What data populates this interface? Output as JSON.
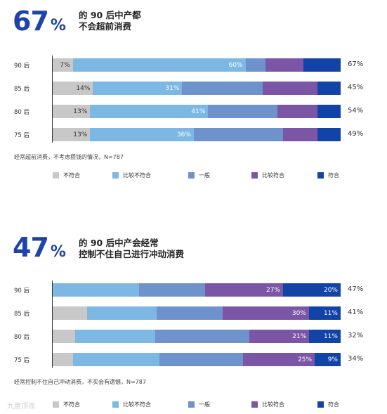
{
  "colors": [
    "#c8c8c8",
    "#7cb8e3",
    "#6e92cc",
    "#7b56a6",
    "#1244a8"
  ],
  "legend": [
    "不符合",
    "比较不符合",
    "一般",
    "比较符合",
    "符合"
  ],
  "watermark": "九度顶视",
  "chart_data": [
    {
      "type": "stacked-bar",
      "big_value": "67",
      "big_unit": "%",
      "title_line1": "的 90 后中产都",
      "title_line2": "不会超前消费",
      "note": "经常超前消费，不考虑攒钱的情况，N=787",
      "categories": [
        "90 后",
        "85 后",
        "80 后",
        "75 后"
      ],
      "rows": [
        {
          "category": "90 后",
          "values": [
            7,
            60,
            7,
            13,
            13
          ],
          "labels": [
            "7%",
            "60%",
            "",
            "",
            ""
          ],
          "total": "67%"
        },
        {
          "category": "85 后",
          "values": [
            14,
            31,
            28,
            19,
            8
          ],
          "labels": [
            "14%",
            "31%",
            "",
            "",
            ""
          ],
          "total": "45%"
        },
        {
          "category": "80 后",
          "values": [
            13,
            41,
            24,
            14,
            8
          ],
          "labels": [
            "13%",
            "41%",
            "",
            "",
            ""
          ],
          "total": "54%"
        },
        {
          "category": "75 后",
          "values": [
            13,
            36,
            31,
            12,
            8
          ],
          "labels": [
            "13%",
            "36%",
            "",
            "",
            ""
          ],
          "total": "49%"
        }
      ]
    },
    {
      "type": "stacked-bar",
      "big_value": "47",
      "big_unit": "%",
      "title_line1": "的 90 后中产会经常",
      "title_line2": "控制不住自己进行冲动消费",
      "note": "经常控制不住自己冲动消费，不买会有遗憾，N=787",
      "categories": [
        "90 后",
        "85 后",
        "80 后",
        "75 后"
      ],
      "rows": [
        {
          "category": "90 后",
          "values": [
            0,
            30,
            23,
            27,
            20
          ],
          "labels": [
            "",
            "",
            "",
            "27%",
            "20%"
          ],
          "total": "47%"
        },
        {
          "category": "85 后",
          "values": [
            12,
            24,
            23,
            30,
            11
          ],
          "labels": [
            "",
            "",
            "",
            "30%",
            "11%"
          ],
          "total": "41%"
        },
        {
          "category": "80 后",
          "values": [
            8,
            28,
            33,
            21,
            11
          ],
          "labels": [
            "",
            "",
            "",
            "21%",
            "11%"
          ],
          "total": "32%"
        },
        {
          "category": "75 后",
          "values": [
            7,
            30,
            29,
            25,
            9
          ],
          "labels": [
            "",
            "",
            "",
            "25%",
            "9%"
          ],
          "total": "34%"
        }
      ]
    }
  ]
}
